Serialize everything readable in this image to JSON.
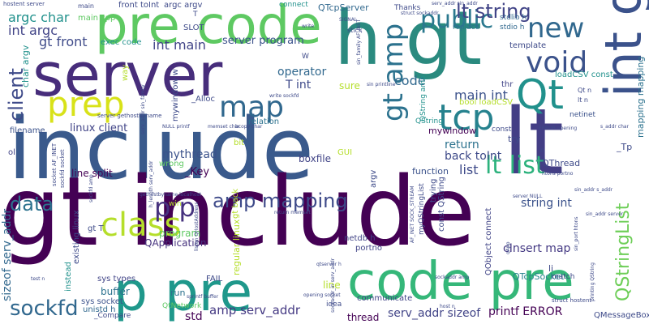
{
  "words": [
    {
      "text": "include",
      "color": "#3a5a8c"
    },
    {
      "text": "gt include",
      "color": "#440154"
    },
    {
      "text": "h gt",
      "color": "#2a8a7f"
    },
    {
      "text": "server",
      "color": "#472d7b"
    },
    {
      "text": "pre code",
      "color": "#5ec962"
    },
    {
      "text": "lt",
      "color": "#433e85"
    },
    {
      "text": "code pre",
      "color": "#35b779"
    },
    {
      "text": "p pre",
      "color": "#1f988b"
    },
    {
      "text": "int gt",
      "color": "#3b528b"
    },
    {
      "text": "prep",
      "color": "#d8e219"
    },
    {
      "text": "class",
      "color": "#b5de2b"
    },
    {
      "text": "map",
      "color": "#31688e"
    },
    {
      "text": "Qt",
      "color": "#21918c"
    },
    {
      "text": "void",
      "color": "#3b528b"
    },
    {
      "text": "tcp",
      "color": "#26828e"
    },
    {
      "text": "new",
      "color": "#31688e"
    },
    {
      "text": "gt amp",
      "color": "#2c728e"
    },
    {
      "text": "public",
      "color": "#2a788e"
    },
    {
      "text": "lt string",
      "color": "#414487"
    },
    {
      "text": "amp mapping",
      "color": "#3e4a89"
    },
    {
      "text": "p p",
      "color": "#46327e"
    },
    {
      "text": "sockfd",
      "color": "#31688e"
    },
    {
      "text": "data",
      "color": "#2c728e"
    },
    {
      "text": "lt list",
      "color": "#2db27d"
    },
    {
      "text": "QStringList",
      "color": "#6ece58"
    },
    {
      "text": "client",
      "color": "#3e4a89"
    },
    {
      "text": "int main",
      "color": "#414487"
    },
    {
      "text": "argc char",
      "color": "#21918c"
    },
    {
      "text": "int argc",
      "color": "#414487"
    },
    {
      "text": "gt front",
      "color": "#3e4a89"
    },
    {
      "text": "server program",
      "color": "#3b528b"
    },
    {
      "text": "operator",
      "color": "#31688e"
    },
    {
      "text": "T int",
      "color": "#3e4a89"
    },
    {
      "text": "mythread",
      "color": "#3b528b"
    },
    {
      "text": "_Key",
      "color": "#440154"
    },
    {
      "text": "linux client",
      "color": "#414487"
    },
    {
      "text": "code",
      "color": "#31688e"
    },
    {
      "text": "main int",
      "color": "#3b528b"
    },
    {
      "text": "return",
      "color": "#2c728e"
    },
    {
      "text": "back toInt",
      "color": "#3e4a89"
    },
    {
      "text": "list",
      "color": "#3e4a89"
    },
    {
      "text": "string int",
      "color": "#3b528b"
    },
    {
      "text": "cInsert map",
      "color": "#443983"
    },
    {
      "text": "QTcpServer",
      "color": "#31688e"
    },
    {
      "text": "QTcpSocket",
      "color": "#26828e"
    },
    {
      "text": "mywindow",
      "color": "#440154"
    },
    {
      "text": "QApplication",
      "color": "#46327e"
    },
    {
      "text": "program",
      "color": "#5ec962"
    },
    {
      "text": "sizeof serv_addr",
      "color": "#31688e"
    },
    {
      "text": "amp serv_addr",
      "color": "#443983"
    },
    {
      "text": "std",
      "color": "#440154"
    },
    {
      "text": "serv_addr sizeof",
      "color": "#414487"
    },
    {
      "text": "printf ERROR",
      "color": "#440154"
    },
    {
      "text": "QMessageBox",
      "color": "#3e4a89"
    },
    {
      "text": "buffer",
      "color": "#2c728e"
    },
    {
      "text": "run",
      "color": "#2c728e"
    },
    {
      "text": "line",
      "color": "#b5de2b"
    },
    {
      "text": "thread",
      "color": "#440154"
    },
    {
      "text": "line split",
      "color": "#440154"
    },
    {
      "text": "boxfile",
      "color": "#414487"
    },
    {
      "text": "function",
      "color": "#3b528b"
    },
    {
      "text": "mapping mapping",
      "color": "#2c728e"
    },
    {
      "text": "QThread",
      "color": "#3e4a89"
    },
    {
      "text": "loadCSV const",
      "color": "#21918c"
    },
    {
      "text": "bool loadCSV",
      "color": "#b5de2b"
    },
    {
      "text": "connect",
      "color": "#21918c"
    },
    {
      "text": "front toInt",
      "color": "#3e4a89"
    },
    {
      "text": "exec code",
      "color": "#21918c"
    },
    {
      "text": "main cpp",
      "color": "#5ec962"
    },
    {
      "text": "filename",
      "color": "#3b528b"
    },
    {
      "text": "sys types",
      "color": "#414487"
    },
    {
      "text": "sys socket",
      "color": "#3b528b"
    },
    {
      "text": "unistd h",
      "color": "#31688e"
    },
    {
      "text": "FAIL",
      "color": "#3e4a89"
    },
    {
      "text": "QtNetwork",
      "color": "#5ec962"
    },
    {
      "text": "GUI",
      "color": "#b5de2b"
    },
    {
      "text": "SLOT",
      "color": "#3e4a89"
    },
    {
      "text": "Thanks",
      "color": "#3e4a89"
    },
    {
      "text": "replace",
      "color": "#2c728e"
    },
    {
      "text": "template",
      "color": "#3e4a89"
    },
    {
      "text": "stdio h",
      "color": "#31688e"
    },
    {
      "text": "stdlib h",
      "color": "#31688e"
    },
    {
      "text": "thr",
      "color": "#414487"
    },
    {
      "text": "netinet",
      "color": "#3b528b"
    },
    {
      "text": "const",
      "color": "#3e4a89"
    },
    {
      "text": "try",
      "color": "#3e4a89"
    },
    {
      "text": "_Tp",
      "color": "#3e4a89"
    },
    {
      "text": "communicate",
      "color": "#414487"
    },
    {
      "text": "idea",
      "color": "#3e4a89"
    },
    {
      "text": "match",
      "color": "#3e4a89"
    },
    {
      "text": "li",
      "color": "#3e4a89"
    },
    {
      "text": "relation",
      "color": "#2c728e"
    },
    {
      "text": "_Alloc",
      "color": "#3e4a89"
    },
    {
      "text": "sure",
      "color": "#b5de2b"
    },
    {
      "text": "bit",
      "color": "#b5de2b"
    },
    {
      "text": "wrong",
      "color": "#5ec962"
    },
    {
      "text": "ol",
      "color": "#414487"
    },
    {
      "text": "win",
      "color": "#b5de2b"
    },
    {
      "text": "netdb h",
      "color": "#414487"
    },
    {
      "text": "portno",
      "color": "#414487"
    },
    {
      "text": "regular linux",
      "color": "#b5de2b"
    },
    {
      "text": "gt back",
      "color": "#b5de2b"
    },
    {
      "text": "argv",
      "color": "#3e4a89"
    },
    {
      "text": "const QString",
      "color": "#3e4a89"
    },
    {
      "text": "trying",
      "color": "#3e4a89"
    },
    {
      "text": "QObject connect",
      "color": "#414487"
    },
    {
      "text": "myQStringList",
      "color": "#3e4a89"
    },
    {
      "text": "instead",
      "color": "#21918c"
    },
    {
      "text": "existing linux",
      "color": "#3e4a89"
    },
    {
      "text": "gt T",
      "color": "#3e4a89"
    },
    {
      "text": "mywindow w",
      "color": "#3e4a89"
    },
    {
      "text": "char argv",
      "color": "#21918c"
    },
    {
      "text": "argc argv",
      "color": "#3e4a89"
    },
    {
      "text": "QString amp",
      "color": "#21918c"
    },
    {
      "text": "QString",
      "color": "#21918c"
    },
    {
      "text": "_Compare",
      "color": "#3e4a89"
    },
    {
      "text": "hostent server",
      "color": "#3e4a89"
    },
    {
      "text": "server gethostbyname",
      "color": "#3e4a89"
    },
    {
      "text": "socket AF_INET",
      "color": "#3e4a89"
    },
    {
      "text": "sockfd socket",
      "color": "#3e4a89"
    },
    {
      "text": "serv_addr sin_family",
      "color": "#3e4a89"
    },
    {
      "text": "NULL printf",
      "color": "#3e4a89"
    },
    {
      "text": "bcopy char",
      "color": "#3e4a89"
    },
    {
      "text": "memset char",
      "color": "#3e4a89"
    },
    {
      "text": "write sockfd",
      "color": "#3e4a89"
    },
    {
      "text": "gethostbyname localhost",
      "color": "#3e4a89"
    },
    {
      "text": "sockaddr_in serv_addr",
      "color": "#3e4a89"
    },
    {
      "text": "return memset",
      "color": "#3e4a89"
    },
    {
      "text": "opening socket",
      "color": "#3e4a89"
    },
    {
      "text": "sprintf buffer",
      "color": "#3e4a89"
    },
    {
      "text": "AF_INET SOCK_STREAM",
      "color": "#3e4a89"
    },
    {
      "text": "sockaddr amp",
      "color": "#3e4a89"
    },
    {
      "text": "ERROR opening",
      "color": "#3e4a89"
    },
    {
      "text": "htons portno",
      "color": "#3e4a89"
    },
    {
      "text": "sin_addr s_addr",
      "color": "#3e4a89"
    },
    {
      "text": "server NULL",
      "color": "#3e4a89"
    },
    {
      "text": "struct hostent",
      "color": "#3e4a89"
    },
    {
      "text": "qtserver h",
      "color": "#3e4a89"
    },
    {
      "text": "test n",
      "color": "#3e4a89"
    },
    {
      "text": "host n",
      "color": "#3e4a89"
    },
    {
      "text": "qApp",
      "color": "#3e4a89"
    },
    {
      "text": "struct sockaddr",
      "color": "#3e4a89"
    },
    {
      "text": "stick",
      "color": "#3e4a89"
    },
    {
      "text": "SIGNAL",
      "color": "#3e4a89"
    },
    {
      "text": "sin_family AF_INET",
      "color": "#3e4a89"
    },
    {
      "text": "sin printline",
      "color": "#3e4a89"
    },
    {
      "text": "printing QString",
      "color": "#3e4a89"
    },
    {
      "text": "h_length serv_addr",
      "color": "#3e4a89"
    },
    {
      "text": "sin_port htons",
      "color": "#3e4a89"
    },
    {
      "text": "sin_addr server",
      "color": "#3e4a89"
    },
    {
      "text": "serv_addr sin_addr",
      "color": "#3e4a89"
    },
    {
      "text": "s_addr char",
      "color": "#3e4a89"
    },
    {
      "text": "listen QHostAddress",
      "color": "#3e4a89"
    },
    {
      "text": "Qt n",
      "color": "#3e4a89"
    },
    {
      "text": "lt n",
      "color": "#3e4a89"
    },
    {
      "text": "write",
      "color": "#3e4a89"
    },
    {
      "text": "W",
      "color": "#3e4a89"
    },
    {
      "text": "T",
      "color": "#3e4a89"
    },
    {
      "text": "way",
      "color": "#b5de2b"
    },
    {
      "text": "sockfd amp",
      "color": "#3e4a89"
    },
    {
      "text": "main",
      "color": "#3e4a89"
    },
    {
      "text": "n",
      "color": "#3e4a89"
    }
  ]
}
